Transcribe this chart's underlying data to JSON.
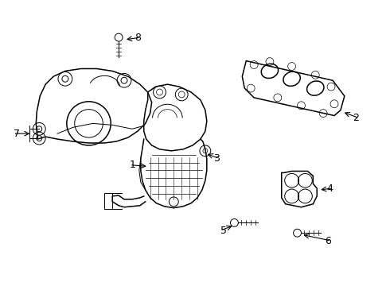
{
  "background_color": "#ffffff",
  "line_color": "#000000",
  "figsize": [
    4.9,
    3.6
  ],
  "dpi": 100,
  "lw_main": 1.1,
  "lw_thin": 0.7,
  "lw_detail": 0.5
}
